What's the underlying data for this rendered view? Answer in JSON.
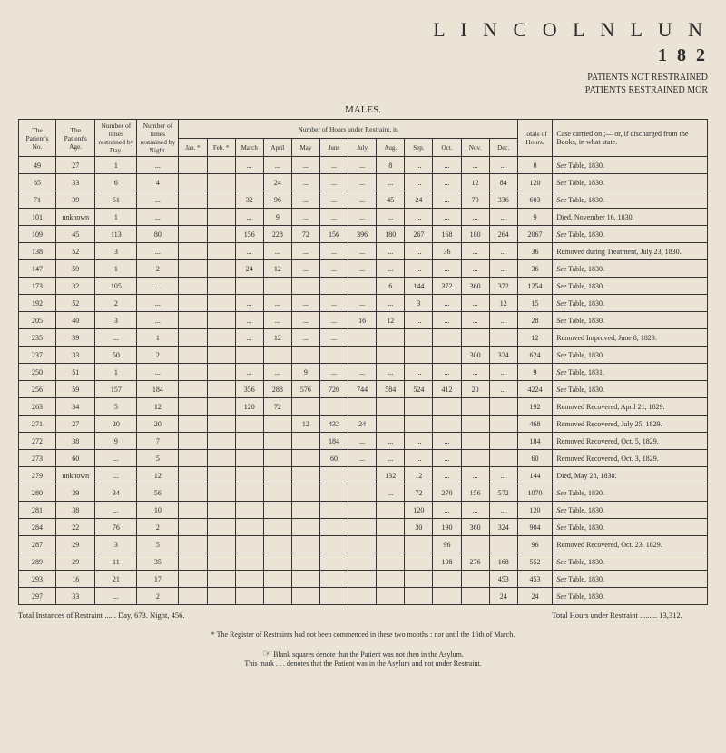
{
  "header": {
    "title": "L I N C O L N   L U N",
    "year": "1 8 2",
    "sub1": "PATIENTS NOT RESTRAINED",
    "sub2": "PATIENTS RESTRAINED MOR"
  },
  "tableLabel": "MALES.",
  "columns": {
    "patno": "The Patient's No.",
    "age": "The Patient's Age.",
    "timesDay": "Number of times restrained by Day.",
    "timesNight": "Number of times restrained by Night.",
    "hoursHeader": "Number of Hours under Restraint, in",
    "totals": "Totals of Hours.",
    "case": "Case carried on ;— or, if discharged from the Books, in what state.",
    "months": [
      "Jan. *",
      "Feb. *",
      "March",
      "April",
      "May",
      "June",
      "July",
      "Aug.",
      "Sep.",
      "Oct.",
      "Nov.",
      "Dec."
    ]
  },
  "rows": [
    {
      "no": "49",
      "age": "27",
      "day": "1",
      "night": "...",
      "m": [
        "",
        "",
        "...",
        "...",
        "...",
        "...",
        "...",
        "8",
        "...",
        "...",
        "...",
        "..."
      ],
      "tot": "8",
      "case": "See Table, 1830."
    },
    {
      "no": "65",
      "age": "33",
      "day": "6",
      "night": "4",
      "m": [
        "",
        "",
        "",
        "24",
        "...",
        "...",
        "...",
        "...",
        "...",
        "...",
        "12",
        "84"
      ],
      "tot": "120",
      "case": "See Table, 1830."
    },
    {
      "no": "71",
      "age": "39",
      "day": "51",
      "night": "...",
      "m": [
        "",
        "",
        "32",
        "96",
        "...",
        "...",
        "...",
        "45",
        "24",
        "...",
        "70",
        "336"
      ],
      "tot": "603",
      "case": "See Table, 1830."
    },
    {
      "no": "101",
      "age": "unknown",
      "day": "1",
      "night": "...",
      "m": [
        "",
        "",
        "...",
        "9",
        "...",
        "...",
        "...",
        "...",
        "...",
        "...",
        "...",
        "..."
      ],
      "tot": "9",
      "case": "Died, November 16, 1830."
    },
    {
      "no": "109",
      "age": "45",
      "day": "113",
      "night": "80",
      "m": [
        "",
        "",
        "156",
        "228",
        "72",
        "156",
        "396",
        "180",
        "267",
        "168",
        "180",
        "264"
      ],
      "tot": "2067",
      "case": "See Table, 1830."
    },
    {
      "no": "138",
      "age": "52",
      "day": "3",
      "night": "...",
      "m": [
        "",
        "",
        "...",
        "...",
        "...",
        "...",
        "...",
        "...",
        "...",
        "36",
        "...",
        "..."
      ],
      "tot": "36",
      "case": "Removed during Treatment, July 23, 1830."
    },
    {
      "no": "147",
      "age": "59",
      "day": "1",
      "night": "2",
      "m": [
        "",
        "",
        "24",
        "12",
        "...",
        "...",
        "...",
        "...",
        "...",
        "...",
        "...",
        "..."
      ],
      "tot": "36",
      "case": "See Table, 1830."
    },
    {
      "no": "173",
      "age": "32",
      "day": "105",
      "night": "...",
      "m": [
        "",
        "",
        "",
        "",
        "",
        "",
        "",
        "6",
        "144",
        "372",
        "360",
        "372"
      ],
      "tot": "1254",
      "case": "See Table, 1830."
    },
    {
      "no": "192",
      "age": "52",
      "day": "2",
      "night": "...",
      "m": [
        "",
        "",
        "...",
        "...",
        "...",
        "...",
        "...",
        "...",
        "3",
        "...",
        "...",
        "12"
      ],
      "tot": "15",
      "case": "See Table, 1830."
    },
    {
      "no": "205",
      "age": "40",
      "day": "3",
      "night": "...",
      "m": [
        "",
        "",
        "...",
        "...",
        "...",
        "...",
        "16",
        "12",
        "...",
        "...",
        "...",
        "..."
      ],
      "tot": "28",
      "case": "See Table, 1830."
    },
    {
      "no": "235",
      "age": "39",
      "day": "...",
      "night": "1",
      "m": [
        "",
        "",
        "...",
        "12",
        "...",
        "...",
        "",
        "",
        "",
        "",
        "",
        ""
      ],
      "tot": "12",
      "case": "Removed Improved, June 8, 1829."
    },
    {
      "no": "237",
      "age": "33",
      "day": "50",
      "night": "2",
      "m": [
        "",
        "",
        "",
        "",
        "",
        "",
        "",
        "",
        "",
        "",
        "300",
        "324"
      ],
      "tot": "624",
      "case": "See Table, 1830."
    },
    {
      "no": "250",
      "age": "51",
      "day": "1",
      "night": "...",
      "m": [
        "",
        "",
        "...",
        "...",
        "9",
        "...",
        "...",
        "...",
        "...",
        "...",
        "...",
        "..."
      ],
      "tot": "9",
      "case": "See Table, 1831."
    },
    {
      "no": "256",
      "age": "59",
      "day": "157",
      "night": "184",
      "m": [
        "",
        "",
        "356",
        "288",
        "576",
        "720",
        "744",
        "584",
        "524",
        "412",
        "20",
        "..."
      ],
      "tot": "4224",
      "case": "See Table, 1830."
    },
    {
      "no": "263",
      "age": "34",
      "day": "5",
      "night": "12",
      "m": [
        "",
        "",
        "120",
        "72",
        "",
        "",
        "",
        "",
        "",
        "",
        "",
        ""
      ],
      "tot": "192",
      "case": "Removed Recovered, April 21, 1829."
    },
    {
      "no": "271",
      "age": "27",
      "day": "20",
      "night": "20",
      "m": [
        "",
        "",
        "",
        "",
        "12",
        "432",
        "24",
        "",
        "",
        "",
        "",
        ""
      ],
      "tot": "468",
      "case": "Removed Recovered, July 25, 1829."
    },
    {
      "no": "272",
      "age": "38",
      "day": "9",
      "night": "7",
      "m": [
        "",
        "",
        "",
        "",
        "",
        "184",
        "...",
        "...",
        "...",
        "...",
        "",
        ""
      ],
      "tot": "184",
      "case": "Removed Recovered, Oct. 5, 1829."
    },
    {
      "no": "273",
      "age": "60",
      "day": "...",
      "night": "5",
      "m": [
        "",
        "",
        "",
        "",
        "",
        "60",
        "...",
        "...",
        "...",
        "...",
        "",
        ""
      ],
      "tot": "60",
      "case": "Removed Recovered, Oct. 3, 1829."
    },
    {
      "no": "279",
      "age": "unknown",
      "day": "...",
      "night": "12",
      "m": [
        "",
        "",
        "",
        "",
        "",
        "",
        "",
        "132",
        "12",
        "...",
        "...",
        "..."
      ],
      "tot": "144",
      "case": "Died, May 28, 1830."
    },
    {
      "no": "280",
      "age": "39",
      "day": "34",
      "night": "56",
      "m": [
        "",
        "",
        "",
        "",
        "",
        "",
        "",
        "...",
        "72",
        "270",
        "156",
        "572"
      ],
      "tot": "1070",
      "case": "See Table, 1830."
    },
    {
      "no": "281",
      "age": "38",
      "day": "...",
      "night": "10",
      "m": [
        "",
        "",
        "",
        "",
        "",
        "",
        "",
        "",
        "120",
        "...",
        "...",
        "..."
      ],
      "tot": "120",
      "case": "See Table, 1830."
    },
    {
      "no": "284",
      "age": "22",
      "day": "76",
      "night": "2",
      "m": [
        "",
        "",
        "",
        "",
        "",
        "",
        "",
        "",
        "30",
        "190",
        "360",
        "324"
      ],
      "tot": "904",
      "case": "See Table, 1830."
    },
    {
      "no": "287",
      "age": "29",
      "day": "3",
      "night": "5",
      "m": [
        "",
        "",
        "",
        "",
        "",
        "",
        "",
        "",
        "",
        "96",
        "",
        ""
      ],
      "tot": "96",
      "case": "Removed Recovered, Oct. 23, 1829."
    },
    {
      "no": "289",
      "age": "29",
      "day": "11",
      "night": "35",
      "m": [
        "",
        "",
        "",
        "",
        "",
        "",
        "",
        "",
        "",
        "108",
        "276",
        "168"
      ],
      "tot": "552",
      "case": "See Table, 1830."
    },
    {
      "no": "293",
      "age": "16",
      "day": "21",
      "night": "17",
      "m": [
        "",
        "",
        "",
        "",
        "",
        "",
        "",
        "",
        "",
        "",
        "",
        "453"
      ],
      "tot": "453",
      "case": "See Table, 1830."
    },
    {
      "no": "297",
      "age": "33",
      "day": "...",
      "night": "2",
      "m": [
        "",
        "",
        "",
        "",
        "",
        "",
        "",
        "",
        "",
        "",
        "",
        "24"
      ],
      "tot": "24",
      "case": "See Table, 1830."
    }
  ],
  "footer": {
    "totalInstances": "Total Instances of Restraint ......",
    "dayNight": "Day, 673. Night, 456.",
    "totalHours": "Total Hours under Restraint ......... 13,312.",
    "note1": "* The Register of Restraints had not been commenced in these two months : nor until the 16th of March.",
    "note2": "Blank squares denote that the Patient was not then in the Asylum.",
    "note3": "This mark . . . denotes that the Patient was in the Asylum and not under Restraint."
  }
}
